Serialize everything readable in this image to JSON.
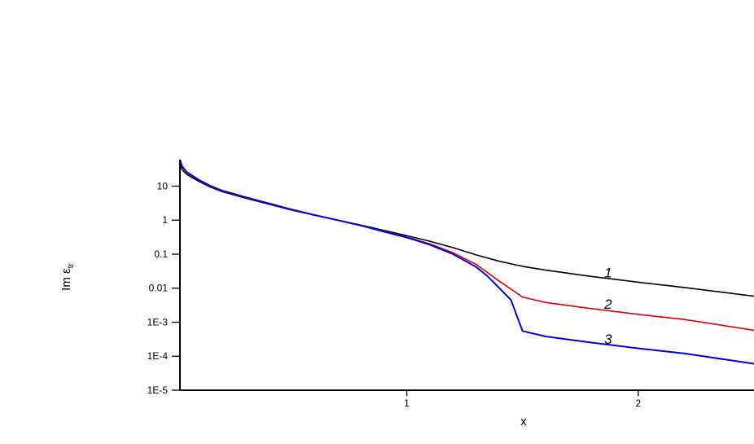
{
  "chart_data": {
    "type": "line",
    "xlabel": "x",
    "ylabel": "Im ε",
    "ylabel_sub": "tr",
    "y_scale": "log",
    "xlim": [
      0.02,
      2.5
    ],
    "ylim": [
      1e-05,
      60
    ],
    "x_ticks": [
      {
        "value": 1,
        "label": "1"
      },
      {
        "value": 2,
        "label": "2"
      }
    ],
    "y_ticks": [
      {
        "value": 10,
        "label": "10"
      },
      {
        "value": 1,
        "label": "1"
      },
      {
        "value": 0.1,
        "label": "0.1"
      },
      {
        "value": 0.01,
        "label": "0.01"
      },
      {
        "value": 0.001,
        "label": "1E-3"
      },
      {
        "value": 0.0001,
        "label": "1E-4"
      },
      {
        "value": 1e-05,
        "label": "1E-5"
      }
    ],
    "series": [
      {
        "name": "1",
        "color": "#000000",
        "label_at": [
          1.87,
          0.021
        ],
        "points": [
          [
            0.02,
            45
          ],
          [
            0.03,
            30
          ],
          [
            0.05,
            22
          ],
          [
            0.1,
            14
          ],
          [
            0.15,
            9.5
          ],
          [
            0.2,
            7
          ],
          [
            0.3,
            4.5
          ],
          [
            0.4,
            3
          ],
          [
            0.5,
            2
          ],
          [
            0.6,
            1.4
          ],
          [
            0.7,
            1
          ],
          [
            0.8,
            0.72
          ],
          [
            0.9,
            0.5
          ],
          [
            1.0,
            0.35
          ],
          [
            1.1,
            0.24
          ],
          [
            1.2,
            0.155
          ],
          [
            1.3,
            0.095
          ],
          [
            1.4,
            0.062
          ],
          [
            1.5,
            0.044
          ],
          [
            1.6,
            0.034
          ],
          [
            1.8,
            0.022
          ],
          [
            2.0,
            0.015
          ],
          [
            2.2,
            0.0105
          ],
          [
            2.5,
            0.0058
          ]
        ]
      },
      {
        "name": "2",
        "color": "#e00000",
        "label_at": [
          1.87,
          0.0025
        ],
        "points": [
          [
            0.02,
            55
          ],
          [
            0.03,
            36
          ],
          [
            0.05,
            25
          ],
          [
            0.1,
            15
          ],
          [
            0.15,
            10
          ],
          [
            0.2,
            7.3
          ],
          [
            0.3,
            4.7
          ],
          [
            0.4,
            3.1
          ],
          [
            0.5,
            2.05
          ],
          [
            0.6,
            1.42
          ],
          [
            0.7,
            1
          ],
          [
            0.8,
            0.7
          ],
          [
            0.9,
            0.47
          ],
          [
            1.0,
            0.32
          ],
          [
            1.1,
            0.2
          ],
          [
            1.2,
            0.11
          ],
          [
            1.3,
            0.05
          ],
          [
            1.4,
            0.016
          ],
          [
            1.5,
            0.0055
          ],
          [
            1.6,
            0.0038
          ],
          [
            1.8,
            0.0025
          ],
          [
            2.0,
            0.0017
          ],
          [
            2.2,
            0.0012
          ],
          [
            2.5,
            0.00058
          ]
        ]
      },
      {
        "name": "3",
        "color": "#0000dd",
        "label_at": [
          1.87,
          0.00023
        ],
        "points": [
          [
            0.02,
            60
          ],
          [
            0.03,
            38
          ],
          [
            0.05,
            26
          ],
          [
            0.1,
            15.5
          ],
          [
            0.15,
            10.3
          ],
          [
            0.2,
            7.5
          ],
          [
            0.3,
            4.8
          ],
          [
            0.4,
            3.15
          ],
          [
            0.5,
            2.08
          ],
          [
            0.6,
            1.43
          ],
          [
            0.7,
            1
          ],
          [
            0.8,
            0.7
          ],
          [
            0.9,
            0.46
          ],
          [
            1.0,
            0.31
          ],
          [
            1.1,
            0.19
          ],
          [
            1.2,
            0.1
          ],
          [
            1.3,
            0.042
          ],
          [
            1.35,
            0.022
          ],
          [
            1.4,
            0.01
          ],
          [
            1.45,
            0.0045
          ],
          [
            1.5,
            0.00055
          ],
          [
            1.6,
            0.00038
          ],
          [
            1.8,
            0.00025
          ],
          [
            2.0,
            0.00017
          ],
          [
            2.2,
            0.00012
          ],
          [
            2.5,
            6e-05
          ]
        ]
      }
    ]
  }
}
